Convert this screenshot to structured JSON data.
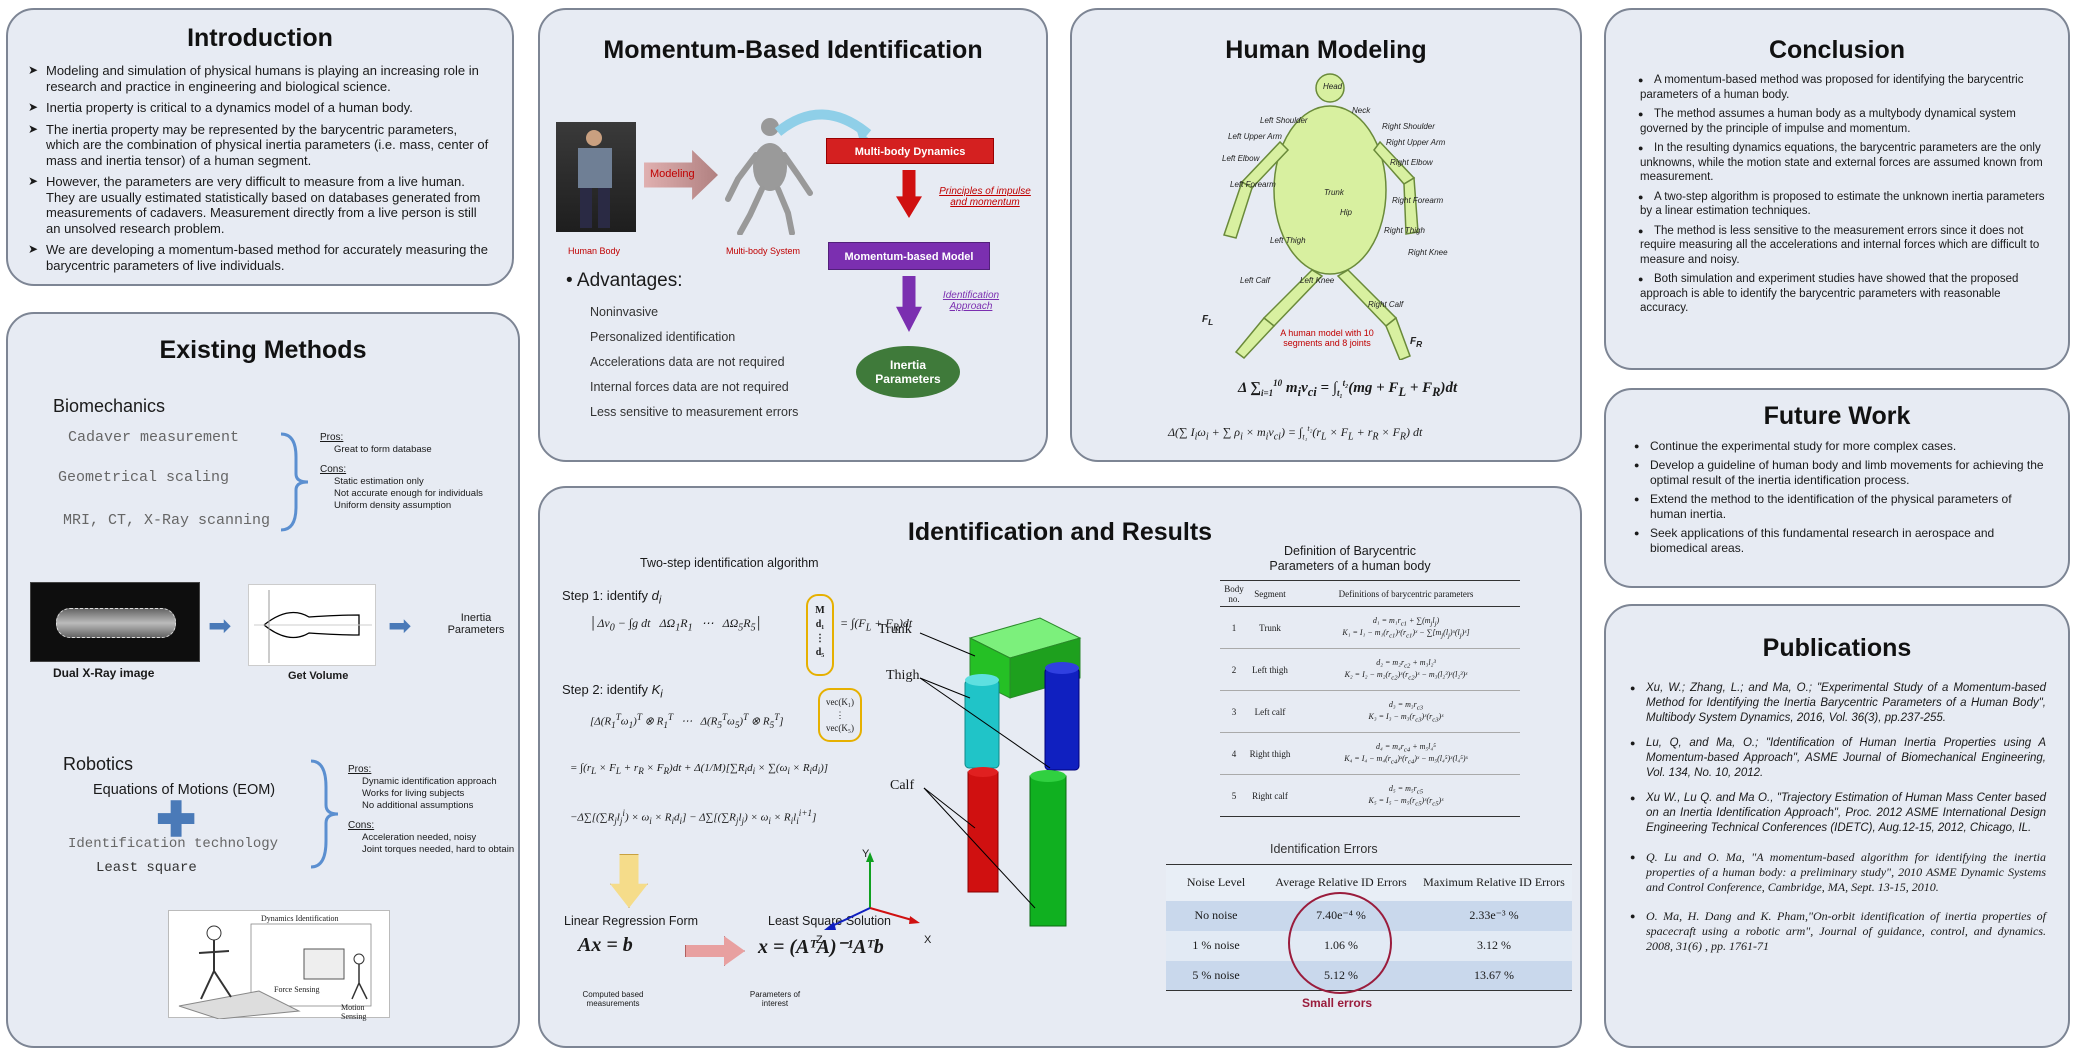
{
  "intro": {
    "title": "Introduction",
    "bullets": [
      "Modeling and simulation of physical humans is playing an increasing role in research and practice in engineering and biological science.",
      "Inertia property is critical to a dynamics model of a human body.",
      "The inertia property may be represented by the barycentric parameters, which are the combination of physical inertia parameters (i.e. mass, center of mass and inertia tensor) of a human segment.",
      "However, the parameters are very difficult to measure from a live human. They are usually estimated statistically based on databases generated from measurements of cadavers. Measurement directly from a live person is still an unsolved research problem.",
      "We are developing a momentum-based method for accurately measuring the barycentric parameters of live individuals."
    ]
  },
  "existing": {
    "title": "Existing Methods",
    "biomech": "Biomechanics",
    "bio_methods": [
      "Cadaver measurement",
      "Geometrical scaling",
      "MRI, CT, X-Ray scanning"
    ],
    "pros_label": "Pros:",
    "bio_pros": [
      "Great to form database"
    ],
    "cons_label": "Cons:",
    "bio_cons": [
      "Static estimation only",
      "Not accurate enough for individuals",
      "Uniform density assumption"
    ],
    "xray_label": "Dual X-Ray image",
    "volume_label": "Get Volume",
    "inertia_label": "Inertia Parameters",
    "robotics": "Robotics",
    "eom": "Equations of Motions (EOM)",
    "ident_tech": "Identification technology",
    "least_sq": "Least square",
    "rob_pros": [
      "Dynamic identification approach",
      "Works for living subjects",
      "No additional assumptions"
    ],
    "rob_cons": [
      "Acceleration needed, noisy",
      "Joint torques needed, hard to obtain"
    ],
    "fig_labels": [
      "Dynamics Identification",
      "Force Sensing",
      "Motion Sensing"
    ]
  },
  "momentum": {
    "title": "Momentum-Based Identification",
    "human_body": "Human Body",
    "modeling": "Modeling",
    "multibody_system": "Multi-body System",
    "multibody_dynamics": "Multi-body Dynamics",
    "principles": "Principles of impulse and momentum",
    "momentum_model": "Momentum-based Model",
    "identification_approach": "Identification Approach",
    "inertia_params": "Inertia Parameters",
    "advantages_title": "Advantages:",
    "advantages": [
      "Noninvasive",
      "Personalized identification",
      "Accelerations data are not required",
      "Internal forces data are not required",
      "Less sensitive to measurement errors"
    ]
  },
  "human": {
    "title": "Human Modeling",
    "labels": [
      "Head",
      "Neck",
      "Left Shoulder",
      "Right Shoulder",
      "Left Upper Arm",
      "Right Upper Arm",
      "Left Elbow",
      "Right Elbow",
      "Left Forearm",
      "Right Forearm",
      "Trunk",
      "Hip",
      "Left Thigh",
      "Right Thigh",
      "Right Knee",
      "Left Calf",
      "Left Knee",
      "Right Calf"
    ],
    "caption": "A human model with 10 segments and 8 joints"
  },
  "results": {
    "title": "Identification and Results",
    "alg_title": "Two-step identification algorithm",
    "step1": "Step 1: identify",
    "step2": "Step 2: identify",
    "linear": "Linear Regression Form",
    "lsq": "Least Square Solution",
    "eq_linear": "Ax = b",
    "eq_lsq": "x = (AᵀA)⁻¹Aᵀb",
    "computed": "Computed based measurements",
    "params_interest": "Parameters of interest",
    "model_labels": [
      "Trunk",
      "Thigh",
      "Calf"
    ],
    "axes": [
      "Y",
      "Z",
      "X"
    ],
    "def_title": "Definition of Barycentric Parameters of a human body",
    "def_headers": [
      "Body no.",
      "Segment",
      "Definitions of barycentric parameters"
    ],
    "def_rows": [
      [
        "1",
        "Trunk"
      ],
      [
        "2",
        "Left thigh"
      ],
      [
        "3",
        "Left calf"
      ],
      [
        "4",
        "Right thigh"
      ],
      [
        "5",
        "Right calf"
      ]
    ],
    "err_title": "Identification Errors",
    "err_headers": [
      "Noise Level",
      "Average Relative ID Errors",
      "Maximum Relative ID Errors"
    ],
    "err_rows": [
      [
        "No noise",
        "7.40e⁻⁴ %",
        "2.33e⁻³ %"
      ],
      [
        "1 % noise",
        "1.06 %",
        "3.12 %"
      ],
      [
        "5 % noise",
        "5.12 %",
        "13.67 %"
      ]
    ],
    "small_errors": "Small errors"
  },
  "conclusion": {
    "title": "Conclusion",
    "bullets": [
      "A momentum-based method was proposed for identifying the barycentric parameters of a human body.",
      "The method assumes a human body as a multybody dynamical system governed by the principle of impulse and momentum.",
      "In the resulting dynamics equations, the barycentric parameters are the only unknowns, while the motion state and external forces are assumed known from measurement.",
      "A two-step algorithm is proposed to estimate the unknown inertia parameters by a linear estimation techniques.",
      "The method is less sensitive to the measurement errors since it does not require measuring all the accelerations and internal forces which are difficult to measure and noisy.",
      "Both simulation and experiment studies have showed that the proposed approach is able to identify the barycentric parameters with reasonable accuracy."
    ]
  },
  "future": {
    "title": "Future Work",
    "bullets": [
      "Continue the experimental study for more complex cases.",
      "Develop a guideline of human body and limb movements for achieving the optimal result of the inertia identification process.",
      "Extend the method to the identification of the physical parameters of human inertia.",
      "Seek applications of this fundamental research in aerospace and biomedical areas."
    ]
  },
  "pubs": {
    "title": "Publications",
    "items": [
      "Xu, W.; Zhang, L.; and Ma, O.; \"Experimental Study of a Momentum-based Method for Identifying the Inertia Barycentric Parameters of a Human Body\", Multibody System Dynamics, 2016, Vol. 36(3), pp.237-255.",
      "Lu, Q, and Ma, O.; \"Identification of Human Inertia Properties using A Momentum-based Approach\", ASME Journal of Biomechanical Engineering, Vol. 134, No. 10, 2012.",
      "Xu W., Lu Q. and Ma O., \"Trajectory Estimation of Human Mass Center based on an Inertia Identification Approach\", Proc. 2012 ASME International Design Engineering Technical Conferences (IDETC), Aug.12-15, 2012, Chicago, IL.",
      "Q. Lu and O. Ma, \"A momentum-based algorithm for identifying the inertia properties of a human body: a preliminary study\", 2010 ASME Dynamic Systems and Control Conference, Cambridge, MA, Sept. 13-15, 2010.",
      "O. Ma, H. Dang and K. Pham,\"On-orbit identification of inertia properties of spacecraft using a robotic arm\", Journal of guidance, control, and dynamics. 2008, 31(6) , pp. 1761-71"
    ]
  }
}
